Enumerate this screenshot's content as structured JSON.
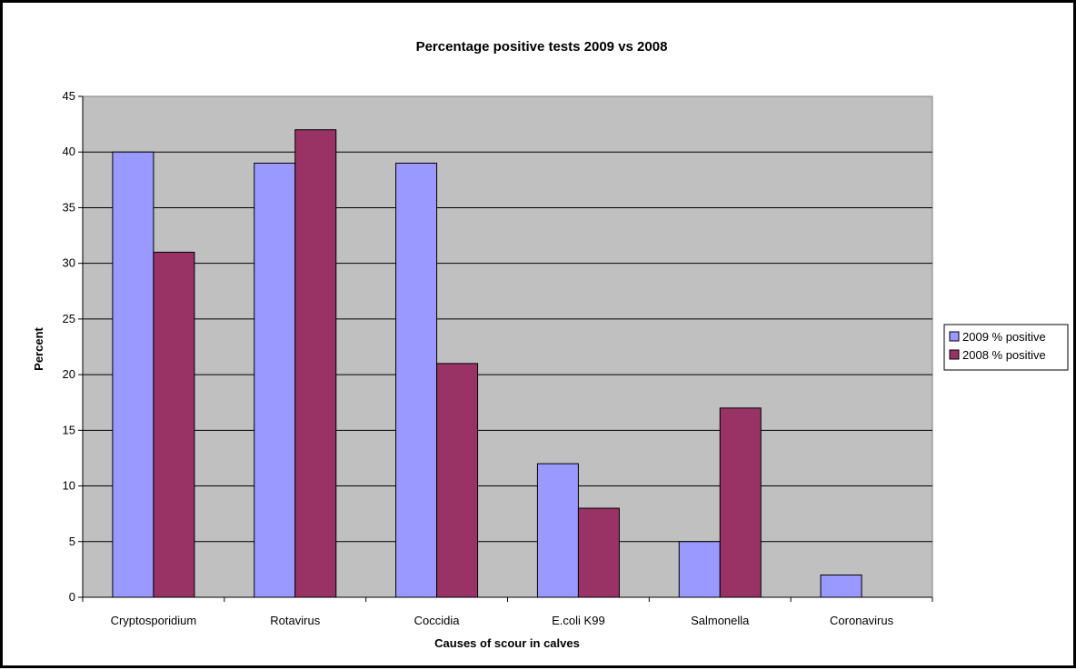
{
  "chart_data": {
    "type": "bar",
    "title": "Percentage positive tests 2009 vs 2008",
    "xlabel": "Causes of scour in calves",
    "ylabel": "Percent",
    "categories": [
      "Cryptosporidium",
      "Rotavirus",
      "Coccidia",
      "E.coli K99",
      "Salmonella",
      "Coronavirus"
    ],
    "series": [
      {
        "name": "2009 % positive",
        "values": [
          40,
          39,
          39,
          12,
          5,
          2
        ],
        "color": "#9999ff"
      },
      {
        "name": "2008 % positive",
        "values": [
          31,
          42,
          21,
          8,
          17,
          0
        ],
        "color": "#993366"
      }
    ],
    "ylim": [
      0,
      45
    ],
    "yticks": [
      0,
      5,
      10,
      15,
      20,
      25,
      30,
      35,
      40,
      45
    ],
    "grid": true,
    "plot_background": "#c0c0c0",
    "legend_position": "right"
  }
}
